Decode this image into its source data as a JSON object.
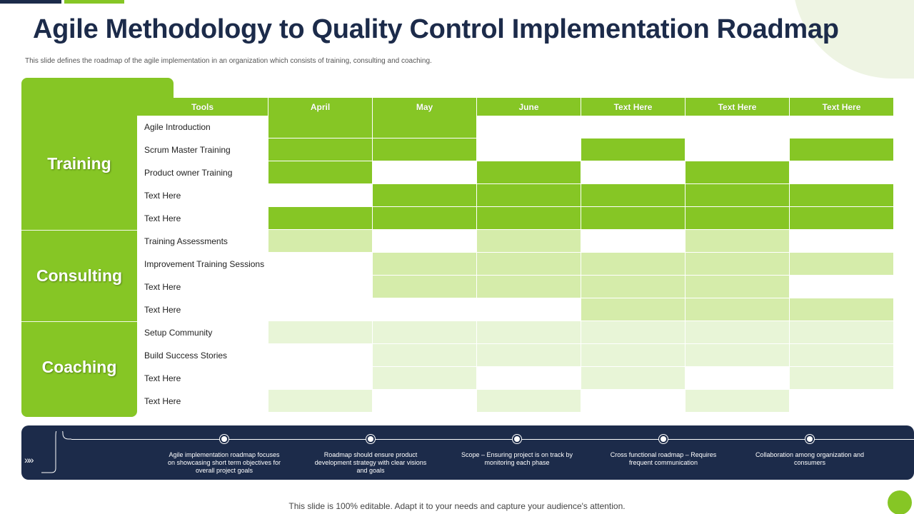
{
  "title": "Agile Methodology to Quality Control Implementation Roadmap",
  "subtitle": "This slide defines the roadmap of the agile implementation in an organization which consists of training, consulting and coaching.",
  "footer": "This slide is 100% editable. Adapt it to your needs and capture your audience's attention.",
  "colors": {
    "dark_navy": "#1c2b4a",
    "accent_green": "#86c625",
    "light_green": "#d5ecaa",
    "pale_green": "#e8f5d7"
  },
  "table": {
    "headers": [
      "Tools",
      "April",
      "May",
      "June",
      "Text Here",
      "Text Here",
      "Text Here"
    ],
    "categories": [
      {
        "label": "Training",
        "row_count": 5
      },
      {
        "label": "Consulting",
        "row_count": 4
      },
      {
        "label": "Coaching",
        "row_count": 4
      }
    ],
    "rows": [
      {
        "task": "Agile Introduction",
        "cells": [
          3,
          3,
          0,
          0,
          0,
          0
        ]
      },
      {
        "task": "Scrum Master Training",
        "cells": [
          3,
          3,
          0,
          3,
          0,
          3
        ]
      },
      {
        "task": "Product owner Training",
        "cells": [
          3,
          0,
          3,
          0,
          3,
          0
        ]
      },
      {
        "task": "Text Here",
        "cells": [
          0,
          3,
          3,
          3,
          3,
          3
        ]
      },
      {
        "task": "Text Here",
        "cells": [
          3,
          3,
          3,
          3,
          3,
          3
        ]
      },
      {
        "task": "Training Assessments",
        "cells": [
          2,
          0,
          2,
          0,
          2,
          0
        ]
      },
      {
        "task": "Improvement Training Sessions",
        "cells": [
          0,
          2,
          2,
          2,
          2,
          2
        ]
      },
      {
        "task": "Text Here",
        "cells": [
          0,
          2,
          2,
          2,
          2,
          0
        ]
      },
      {
        "task": "Text Here",
        "cells": [
          0,
          0,
          0,
          2,
          2,
          2
        ]
      },
      {
        "task": "Setup Community",
        "cells": [
          1,
          1,
          1,
          1,
          1,
          1
        ]
      },
      {
        "task": "Build Success Stories",
        "cells": [
          0,
          1,
          1,
          1,
          1,
          1
        ]
      },
      {
        "task": "Text Here",
        "cells": [
          0,
          1,
          0,
          1,
          0,
          1
        ]
      },
      {
        "task": "Text Here",
        "cells": [
          1,
          0,
          1,
          0,
          1,
          0
        ]
      }
    ]
  },
  "timeline": {
    "arrows": "»»",
    "steps": [
      "Agile implementation roadmap focuses on showcasing short term objectives for overall project goals",
      "Roadmap should ensure product development strategy with clear visions and goals",
      "Scope – Ensuring project is on track by monitoring each phase",
      "Cross functional roadmap – Requires frequent communication",
      "Collaboration among organization and consumers"
    ]
  }
}
